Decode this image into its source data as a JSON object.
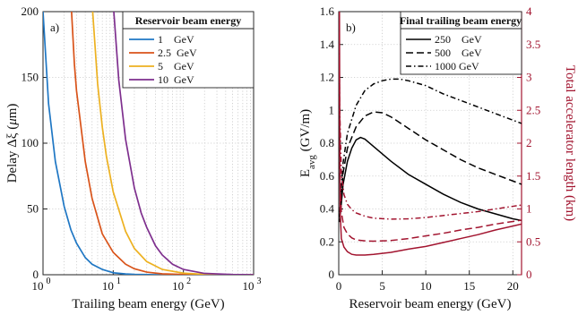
{
  "chart_data": [
    {
      "type": "line",
      "panel_label": "a)",
      "xscale": "log",
      "xlim": [
        1,
        1000
      ],
      "ylim": [
        0,
        200
      ],
      "xticks": [
        1,
        10,
        100,
        1000
      ],
      "xtick_labels": [
        [
          "10",
          "0"
        ],
        [
          "10",
          "1"
        ],
        [
          "10",
          "2"
        ],
        [
          "10",
          "3"
        ]
      ],
      "yticks": [
        0,
        50,
        100,
        150,
        200
      ],
      "ytick_labels": [
        "0",
        "50",
        "100",
        "150",
        "200"
      ],
      "xlabel": "Trailing beam energy (GeV)",
      "ylabel": [
        "Delay Δξ (",
        "μ",
        "m)"
      ],
      "grid": true,
      "legend": {
        "title": "Reservoir beam energy",
        "placement": "top-right",
        "entries": [
          "1    GeV",
          "2.5  GeV",
          "5    GeV",
          "10  GeV"
        ]
      },
      "series": [
        {
          "name": "1 GeV",
          "color": "#1f77c4",
          "points": [
            [
              1.0,
              200
            ],
            [
              1.2,
              130
            ],
            [
              1.5,
              86
            ],
            [
              2,
              52
            ],
            [
              2.5,
              34
            ],
            [
              3,
              24
            ],
            [
              4,
              13
            ],
            [
              5,
              8
            ],
            [
              7,
              4
            ],
            [
              10,
              1.5
            ],
            [
              15,
              0.6
            ],
            [
              20,
              0.3
            ],
            [
              40,
              0
            ],
            [
              1000,
              0
            ]
          ]
        },
        {
          "name": "2.5 GeV",
          "color": "#d95319",
          "points": [
            [
              2.55,
              200
            ],
            [
              2.8,
              160
            ],
            [
              3,
              140
            ],
            [
              4,
              86
            ],
            [
              5,
              58
            ],
            [
              7,
              31
            ],
            [
              10,
              17
            ],
            [
              15,
              8
            ],
            [
              20,
              4.5
            ],
            [
              30,
              2
            ],
            [
              50,
              0.7
            ],
            [
              100,
              0.2
            ],
            [
              200,
              0
            ],
            [
              1000,
              0
            ]
          ]
        },
        {
          "name": "5 GeV",
          "color": "#edb120",
          "points": [
            [
              5.1,
              200
            ],
            [
              6,
              145
            ],
            [
              7,
              112
            ],
            [
              8,
              90
            ],
            [
              10,
              63
            ],
            [
              15,
              33
            ],
            [
              20,
              20
            ],
            [
              30,
              10
            ],
            [
              50,
              4
            ],
            [
              100,
              1.2
            ],
            [
              200,
              0.3
            ],
            [
              500,
              0
            ],
            [
              1000,
              0
            ]
          ]
        },
        {
          "name": "10 GeV",
          "color": "#7e2f8e",
          "points": [
            [
              10.2,
              200
            ],
            [
              12,
              148
            ],
            [
              15,
              103
            ],
            [
              20,
              66
            ],
            [
              25,
              47
            ],
            [
              30,
              36
            ],
            [
              40,
              22
            ],
            [
              50,
              15
            ],
            [
              70,
              8
            ],
            [
              100,
              4
            ],
            [
              200,
              1
            ],
            [
              500,
              0.2
            ],
            [
              1000,
              0
            ]
          ]
        }
      ]
    },
    {
      "type": "line",
      "panel_label": "b)",
      "xlim": [
        0,
        21
      ],
      "ylim": [
        0,
        1.6
      ],
      "y2lim": [
        0,
        4
      ],
      "xticks": [
        0,
        5,
        10,
        15,
        20
      ],
      "xtick_labels": [
        "0",
        "5",
        "10",
        "15",
        "20"
      ],
      "yticks": [
        0,
        0.2,
        0.4,
        0.6,
        0.8,
        1,
        1.2,
        1.4,
        1.6
      ],
      "ytick_labels": [
        "0",
        "0.2",
        "0.4",
        "0.6",
        "0.8",
        "1",
        "1.2",
        "1.4",
        "1.6"
      ],
      "y2ticks": [
        0,
        0.5,
        1,
        1.5,
        2,
        2.5,
        3,
        3.5,
        4
      ],
      "y2tick_labels": [
        "0",
        "0.5",
        "1",
        "1.5",
        "2",
        "2.5",
        "3",
        "3.5",
        "4"
      ],
      "xlabel": "Reservoir beam energy (GeV)",
      "ylabel": [
        "E",
        "avg",
        " (GV/m)"
      ],
      "y2label": "Total accelerator length (km)",
      "grid": true,
      "legend": {
        "title": "Final trailing beam energy",
        "placement": "top",
        "entries": [
          "250    GeV",
          "500    GeV",
          "1000 GeV"
        ]
      },
      "series": [
        {
          "name": "250 GeV",
          "axis": "left",
          "color": "#000000",
          "dash": "",
          "points": [
            [
              0.1,
              0.32
            ],
            [
              0.5,
              0.55
            ],
            [
              1,
              0.69
            ],
            [
              1.5,
              0.77
            ],
            [
              2,
              0.82
            ],
            [
              2.5,
              0.835
            ],
            [
              3,
              0.825
            ],
            [
              4,
              0.78
            ],
            [
              6,
              0.69
            ],
            [
              8,
              0.61
            ],
            [
              10,
              0.55
            ],
            [
              12,
              0.49
            ],
            [
              14,
              0.44
            ],
            [
              16,
              0.4
            ],
            [
              18,
              0.37
            ],
            [
              20,
              0.34
            ],
            [
              21,
              0.33
            ]
          ]
        },
        {
          "name": "500 GeV",
          "axis": "left",
          "color": "#000000",
          "dash": "8 4",
          "points": [
            [
              0.1,
              0.35
            ],
            [
              0.5,
              0.62
            ],
            [
              1,
              0.77
            ],
            [
              2,
              0.9
            ],
            [
              3,
              0.965
            ],
            [
              4,
              0.99
            ],
            [
              5,
              0.985
            ],
            [
              6,
              0.96
            ],
            [
              8,
              0.89
            ],
            [
              10,
              0.82
            ],
            [
              12,
              0.76
            ],
            [
              14,
              0.7
            ],
            [
              16,
              0.65
            ],
            [
              18,
              0.61
            ],
            [
              20,
              0.57
            ],
            [
              21,
              0.55
            ]
          ]
        },
        {
          "name": "1000 GeV",
          "axis": "left",
          "color": "#000000",
          "dash": "6 3 1.5 3",
          "points": [
            [
              0.1,
              0.38
            ],
            [
              0.5,
              0.68
            ],
            [
              1,
              0.86
            ],
            [
              2,
              1.03
            ],
            [
              3,
              1.12
            ],
            [
              4,
              1.16
            ],
            [
              5,
              1.18
            ],
            [
              6,
              1.19
            ],
            [
              7,
              1.19
            ],
            [
              8,
              1.18
            ],
            [
              10,
              1.15
            ],
            [
              12,
              1.1
            ],
            [
              14,
              1.06
            ],
            [
              16,
              1.02
            ],
            [
              18,
              0.98
            ],
            [
              20,
              0.94
            ],
            [
              21,
              0.92
            ]
          ]
        },
        {
          "name": "250 GeV length",
          "axis": "right",
          "color": "#a2142f",
          "dash": "",
          "points": [
            [
              0.08,
              4.0
            ],
            [
              0.15,
              1.0
            ],
            [
              0.3,
              0.55
            ],
            [
              0.6,
              0.42
            ],
            [
              1,
              0.35
            ],
            [
              1.5,
              0.31
            ],
            [
              2,
              0.3
            ],
            [
              3,
              0.3
            ],
            [
              4,
              0.31
            ],
            [
              6,
              0.34
            ],
            [
              8,
              0.39
            ],
            [
              10,
              0.43
            ],
            [
              12,
              0.49
            ],
            [
              14,
              0.55
            ],
            [
              16,
              0.61
            ],
            [
              18,
              0.68
            ],
            [
              20,
              0.74
            ],
            [
              21,
              0.77
            ]
          ]
        },
        {
          "name": "500 GeV length",
          "axis": "right",
          "color": "#a2142f",
          "dash": "8 4",
          "points": [
            [
              0.05,
              4.0
            ],
            [
              0.12,
              1.6
            ],
            [
              0.3,
              0.95
            ],
            [
              0.6,
              0.72
            ],
            [
              1,
              0.62
            ],
            [
              1.5,
              0.56
            ],
            [
              2,
              0.53
            ],
            [
              3,
              0.515
            ],
            [
              4,
              0.51
            ],
            [
              6,
              0.52
            ],
            [
              8,
              0.55
            ],
            [
              10,
              0.59
            ],
            [
              12,
              0.63
            ],
            [
              14,
              0.68
            ],
            [
              16,
              0.72
            ],
            [
              18,
              0.77
            ],
            [
              20,
              0.81
            ],
            [
              21,
              0.83
            ]
          ]
        },
        {
          "name": "1000 GeV length",
          "axis": "right",
          "color": "#a2142f",
          "dash": "6 3 1.5 3",
          "points": [
            [
              0.04,
              4.0
            ],
            [
              0.1,
              2.6
            ],
            [
              0.3,
              1.55
            ],
            [
              0.6,
              1.22
            ],
            [
              1,
              1.07
            ],
            [
              1.5,
              0.99
            ],
            [
              2,
              0.94
            ],
            [
              3,
              0.89
            ],
            [
              4,
              0.86
            ],
            [
              6,
              0.845
            ],
            [
              8,
              0.85
            ],
            [
              10,
              0.87
            ],
            [
              12,
              0.9
            ],
            [
              14,
              0.93
            ],
            [
              16,
              0.96
            ],
            [
              18,
              1.0
            ],
            [
              20,
              1.04
            ],
            [
              21,
              1.06
            ]
          ]
        }
      ]
    }
  ]
}
